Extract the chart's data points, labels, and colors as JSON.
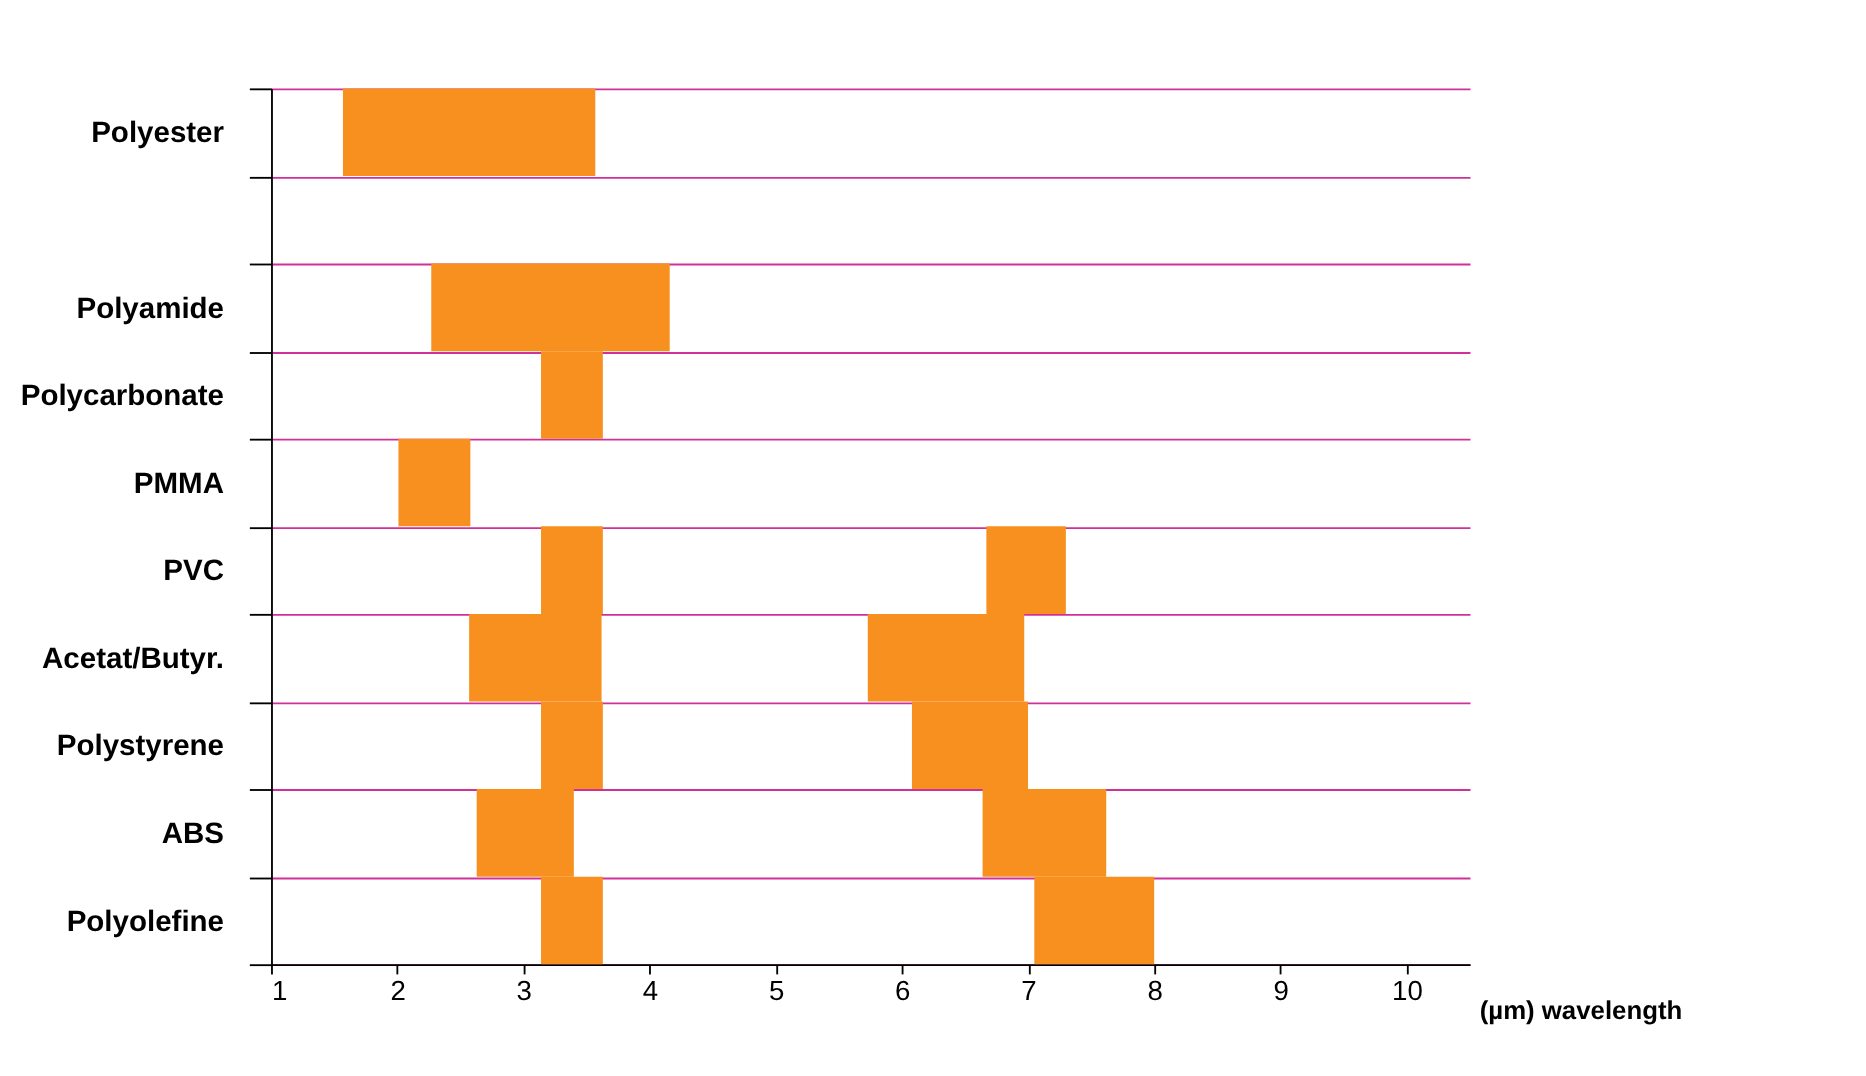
{
  "chart_data": {
    "type": "bar",
    "orientation": "horizontal",
    "xlabel": "(µm) wavelength",
    "categories": [
      "Polyester",
      null,
      "Polyamide",
      "Polycarbonate",
      "PMMA",
      "PVC",
      "Acetat/Butyr.",
      "Polystyrene",
      "ABS",
      "Polyolefine"
    ],
    "series": [
      {
        "color": "#f7901e",
        "base": [
          1.57,
          null,
          2.27,
          3.14,
          2.01,
          3.14,
          2.57,
          3.14,
          2.63,
          3.14
        ],
        "values": [
          2.0,
          null,
          1.89,
          0.49,
          0.57,
          0.49,
          1.05,
          0.49,
          0.77,
          0.49
        ]
      },
      {
        "color": "#f7901e",
        "base": [
          null,
          null,
          null,
          null,
          null,
          6.67,
          5.73,
          6.08,
          6.64,
          7.05
        ],
        "values": [
          null,
          null,
          null,
          null,
          null,
          0.63,
          1.24,
          0.92,
          0.98,
          0.95
        ]
      }
    ],
    "xlim": [
      1,
      10.5
    ],
    "xticks": [
      1,
      2,
      3,
      4,
      5,
      6,
      7,
      8,
      9,
      10
    ],
    "grid": "y"
  }
}
